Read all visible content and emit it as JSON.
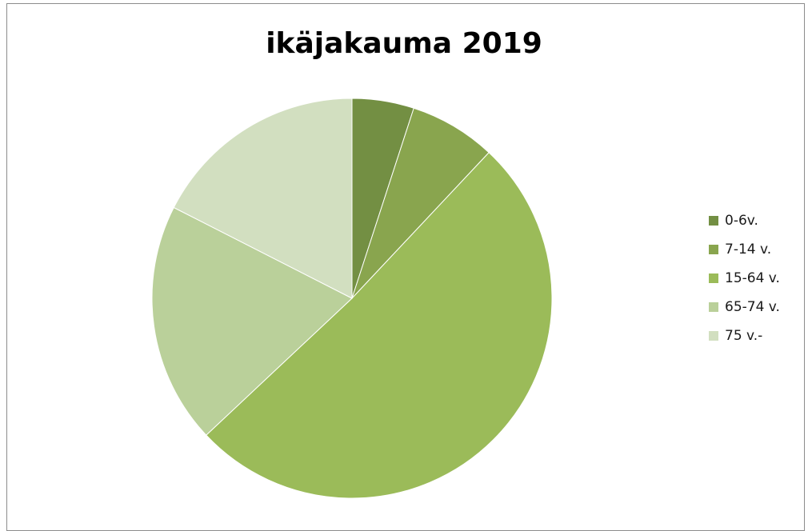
{
  "chart_data": {
    "type": "pie",
    "title": "ikäjakauma 2019",
    "categories": [
      "0-6v.",
      "7-14 v.",
      "15-64 v.",
      "65-74 v.",
      "75 v.-"
    ],
    "values": [
      5,
      7,
      51,
      19.5,
      17.5
    ],
    "unit": "",
    "legend": "right",
    "start_angle": "12 o'clock, clockwise",
    "colors": [
      "#738f43",
      "#89a54e",
      "#9bbb59",
      "#bad09a",
      "#d2dfc0"
    ]
  }
}
